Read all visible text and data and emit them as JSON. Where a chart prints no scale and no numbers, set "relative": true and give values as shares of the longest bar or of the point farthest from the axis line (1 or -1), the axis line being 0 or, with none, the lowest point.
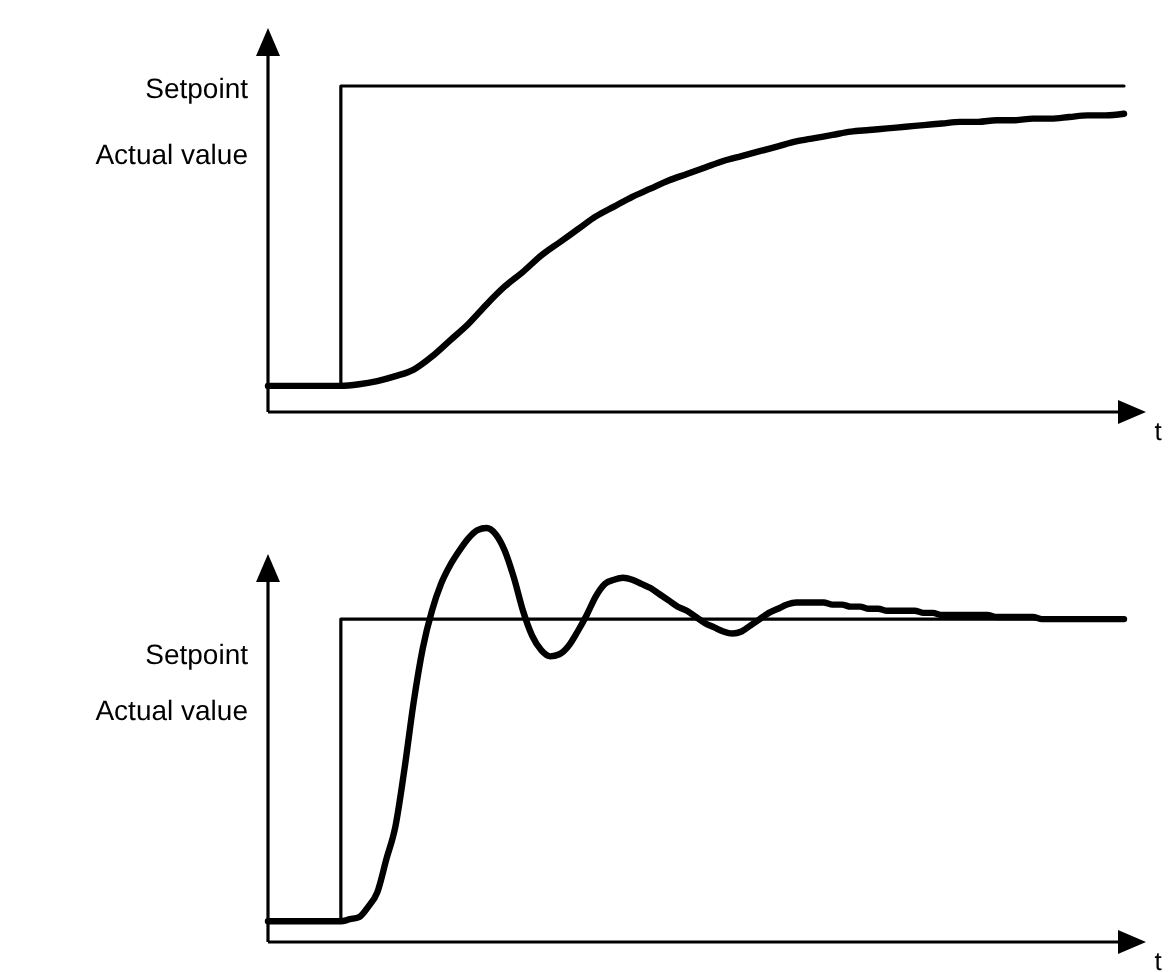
{
  "chart_data": [
    {
      "type": "line",
      "relative": true,
      "ylabel": "Setpoint\nActual value",
      "xlabel": "t",
      "categories": [
        null,
        null,
        null,
        null,
        null,
        null,
        null,
        null,
        null,
        null,
        null,
        null,
        null,
        null,
        null,
        null,
        null,
        null,
        null,
        null,
        null,
        null,
        null,
        null,
        null,
        null,
        null,
        null,
        null,
        null,
        null,
        null,
        null,
        null,
        null,
        null,
        null,
        null,
        null,
        null,
        null,
        null,
        null,
        null,
        null,
        null,
        null,
        null
      ],
      "series": [
        {
          "type": "step",
          "color": "#000000",
          "values": [
            0.08,
            0.08,
            0.08,
            0.08,
            1,
            1,
            1,
            1,
            1,
            1,
            1,
            1,
            1,
            1,
            1,
            1,
            1,
            1,
            1,
            1,
            1,
            1,
            1,
            1,
            1,
            1,
            1,
            1,
            1,
            1,
            1,
            1,
            1,
            1,
            1,
            1,
            1,
            1,
            1,
            1,
            1,
            1,
            1,
            1,
            1,
            1,
            1,
            1
          ]
        },
        {
          "color": "#000000",
          "values": [
            0.08,
            0.08,
            0.08,
            0.08,
            0.08,
            0.085,
            0.095,
            0.11,
            0.13,
            0.17,
            0.22,
            0.27,
            0.33,
            0.385,
            0.43,
            0.48,
            0.52,
            0.56,
            0.6,
            0.63,
            0.66,
            0.685,
            0.71,
            0.73,
            0.75,
            0.77,
            0.785,
            0.8,
            0.815,
            0.83,
            0.84,
            0.85,
            0.86,
            0.865,
            0.87,
            0.875,
            0.88,
            0.885,
            0.89,
            0.89,
            0.895,
            0.895,
            0.9,
            0.9,
            0.905,
            0.91,
            0.91,
            0.915
          ]
        }
      ]
    },
    {
      "type": "line",
      "relative": true,
      "ylabel": "Setpoint\nActual value",
      "xlabel": "t",
      "categories": [
        null,
        null,
        null,
        null,
        null,
        null,
        null,
        null,
        null,
        null,
        null,
        null,
        null,
        null,
        null,
        null,
        null,
        null,
        null,
        null,
        null,
        null,
        null,
        null,
        null,
        null,
        null,
        null,
        null,
        null,
        null,
        null,
        null,
        null,
        null,
        null,
        null,
        null,
        null,
        null,
        null,
        null,
        null,
        null,
        null,
        null,
        null,
        null,
        null,
        null,
        null,
        null,
        null,
        null,
        null,
        null,
        null,
        null,
        null,
        null,
        null,
        null,
        null,
        null,
        null,
        null,
        null,
        null,
        null,
        null,
        null,
        null,
        null,
        null,
        null,
        null,
        null,
        null,
        null,
        null,
        null,
        null,
        null,
        null,
        null,
        null,
        null,
        null,
        null,
        null,
        null,
        null,
        null,
        null,
        null
      ],
      "series": [
        {
          "type": "step",
          "color": "#000000",
          "values": [
            0.05,
            0.05,
            0.05,
            0.05,
            0.05,
            0.05,
            0.05,
            0.05,
            0.78,
            0.78,
            0.78,
            0.78,
            0.78,
            0.78,
            0.78,
            0.78,
            0.78,
            0.78,
            0.78,
            0.78,
            0.78,
            0.78,
            0.78,
            0.78,
            0.78,
            0.78,
            0.78,
            0.78,
            0.78,
            0.78,
            0.78,
            0.78,
            0.78,
            0.78,
            0.78,
            0.78,
            0.78,
            0.78,
            0.78,
            0.78,
            0.78,
            0.78,
            0.78,
            0.78,
            0.78,
            0.78,
            0.78,
            0.78,
            0.78,
            0.78,
            0.78,
            0.78,
            0.78,
            0.78,
            0.78,
            0.78,
            0.78,
            0.78,
            0.78,
            0.78,
            0.78,
            0.78,
            0.78,
            0.78,
            0.78,
            0.78,
            0.78,
            0.78,
            0.78,
            0.78,
            0.78,
            0.78,
            0.78,
            0.78,
            0.78,
            0.78,
            0.78,
            0.78,
            0.78,
            0.78,
            0.78,
            0.78,
            0.78,
            0.78,
            0.78,
            0.78,
            0.78,
            0.78,
            0.78,
            0.78,
            0.78,
            0.78,
            0.78,
            0.78,
            0.78
          ]
        },
        {
          "color": "#000000",
          "values": [
            0.05,
            0.05,
            0.05,
            0.05,
            0.05,
            0.05,
            0.05,
            0.05,
            0.05,
            0.055,
            0.06,
            0.085,
            0.12,
            0.2,
            0.28,
            0.42,
            0.58,
            0.71,
            0.8,
            0.865,
            0.91,
            0.945,
            0.975,
            0.995,
            1,
            0.985,
            0.945,
            0.88,
            0.8,
            0.74,
            0.705,
            0.69,
            0.695,
            0.715,
            0.75,
            0.79,
            0.835,
            0.865,
            0.875,
            0.88,
            0.875,
            0.865,
            0.855,
            0.84,
            0.825,
            0.81,
            0.8,
            0.785,
            0.77,
            0.76,
            0.75,
            0.745,
            0.75,
            0.765,
            0.78,
            0.795,
            0.805,
            0.815,
            0.82,
            0.82,
            0.82,
            0.82,
            0.815,
            0.815,
            0.81,
            0.81,
            0.805,
            0.805,
            0.8,
            0.8,
            0.8,
            0.8,
            0.795,
            0.795,
            0.79,
            0.79,
            0.79,
            0.79,
            0.79,
            0.79,
            0.785,
            0.785,
            0.785,
            0.785,
            0.785,
            0.78,
            0.78,
            0.78,
            0.78,
            0.78,
            0.78,
            0.78,
            0.78,
            0.78,
            0.78
          ]
        }
      ]
    }
  ]
}
